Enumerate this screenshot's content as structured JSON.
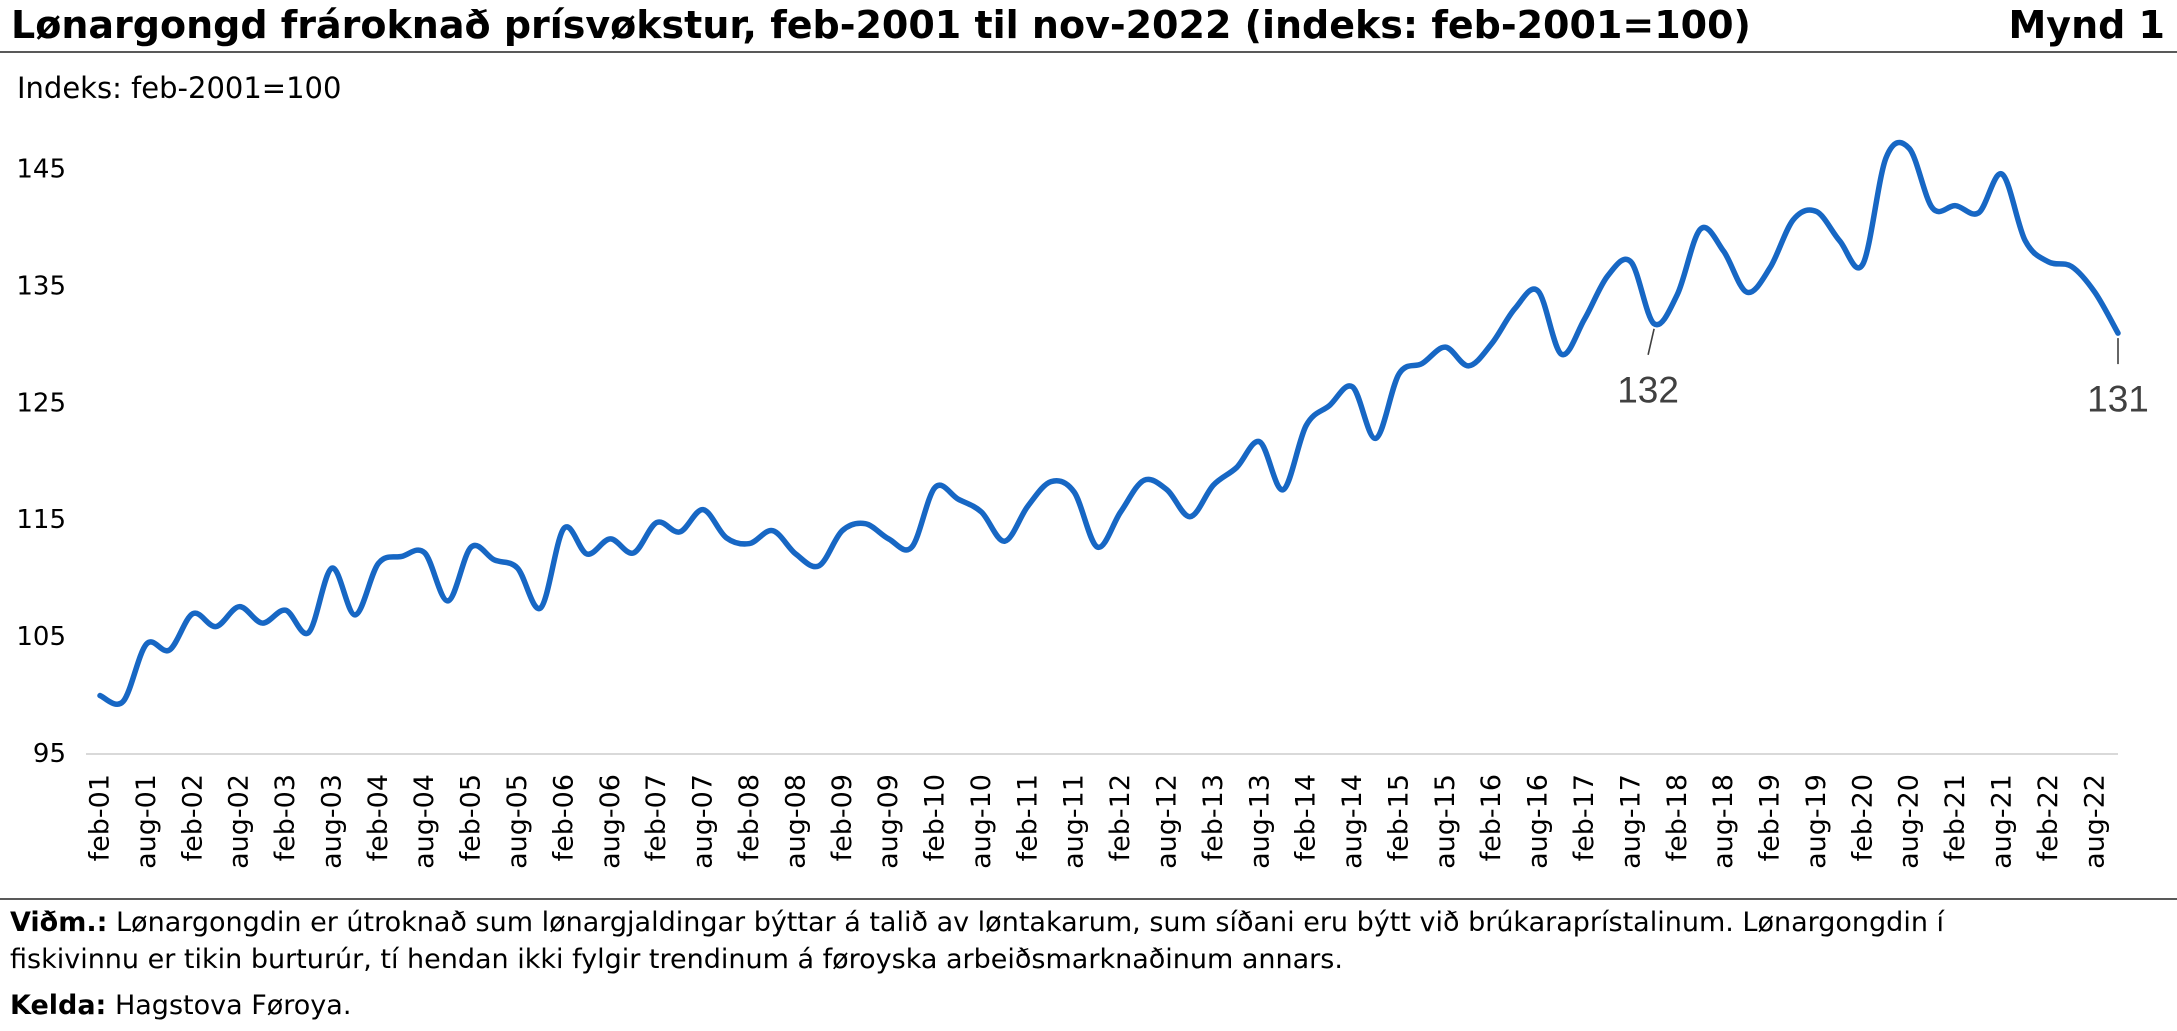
{
  "header": {
    "figure_label": "Mynd 1"
  },
  "chart_data": {
    "type": "line",
    "title": "Lønargongd frároknað prísvøkstur, feb-2001 til nov-2022 (indeks: feb-2001=100)",
    "ylabel": "Indeks: feb-2001=100",
    "xlabel": "",
    "ylim": [
      95,
      150
    ],
    "y_ticks": [
      95,
      105,
      115,
      125,
      135,
      145
    ],
    "grid": false,
    "legend": "none",
    "x_ticks": [
      "feb-01",
      "aug-01",
      "feb-02",
      "aug-02",
      "feb-03",
      "aug-03",
      "feb-04",
      "aug-04",
      "feb-05",
      "aug-05",
      "feb-06",
      "aug-06",
      "feb-07",
      "aug-07",
      "feb-08",
      "aug-08",
      "feb-09",
      "aug-09",
      "feb-10",
      "aug-10",
      "feb-11",
      "aug-11",
      "feb-12",
      "aug-12",
      "feb-13",
      "aug-13",
      "feb-14",
      "aug-14",
      "feb-15",
      "aug-15",
      "feb-16",
      "aug-16",
      "feb-17",
      "aug-17",
      "feb-18",
      "aug-18",
      "feb-19",
      "aug-19",
      "feb-20",
      "aug-20",
      "feb-21",
      "aug-21",
      "feb-22",
      "aug-22"
    ],
    "x": [
      "feb-01",
      "mai-01",
      "aug-01",
      "nov-01",
      "feb-02",
      "mai-02",
      "aug-02",
      "nov-02",
      "feb-03",
      "mai-03",
      "aug-03",
      "nov-03",
      "feb-04",
      "mai-04",
      "aug-04",
      "nov-04",
      "feb-05",
      "mai-05",
      "aug-05",
      "nov-05",
      "feb-06",
      "mai-06",
      "aug-06",
      "nov-06",
      "feb-07",
      "mai-07",
      "aug-07",
      "nov-07",
      "feb-08",
      "mai-08",
      "aug-08",
      "nov-08",
      "feb-09",
      "mai-09",
      "aug-09",
      "nov-09",
      "feb-10",
      "mai-10",
      "aug-10",
      "nov-10",
      "feb-11",
      "mai-11",
      "aug-11",
      "nov-11",
      "feb-12",
      "mai-12",
      "aug-12",
      "nov-12",
      "feb-13",
      "mai-13",
      "aug-13",
      "nov-13",
      "feb-14",
      "mai-14",
      "aug-14",
      "nov-14",
      "feb-15",
      "mai-15",
      "aug-15",
      "nov-15",
      "feb-16",
      "mai-16",
      "aug-16",
      "nov-16",
      "feb-17",
      "mai-17",
      "aug-17",
      "nov-17",
      "feb-18",
      "mai-18",
      "aug-18",
      "nov-18",
      "feb-19",
      "mai-19",
      "aug-19",
      "nov-19",
      "feb-20",
      "mai-20",
      "aug-20",
      "nov-20",
      "feb-21",
      "mai-21",
      "aug-21",
      "nov-21",
      "feb-22",
      "mai-22",
      "aug-22",
      "nov-22"
    ],
    "series": [
      {
        "color": "#1767c4",
        "smooth": true,
        "values": [
          100.0,
          99.5,
          104.4,
          103.9,
          107.0,
          105.9,
          107.6,
          106.2,
          107.3,
          105.4,
          110.9,
          106.9,
          111.3,
          111.9,
          112.2,
          108.1,
          112.7,
          111.6,
          110.9,
          107.5,
          114.3,
          112.1,
          113.4,
          112.2,
          114.8,
          114.0,
          115.9,
          113.5,
          113.0,
          114.1,
          112.1,
          111.1,
          114.1,
          114.7,
          113.4,
          112.7,
          117.8,
          116.8,
          115.7,
          113.2,
          116.2,
          118.3,
          117.4,
          112.7,
          115.7,
          118.4,
          117.6,
          115.3,
          118.0,
          119.5,
          121.7,
          117.6,
          123.1,
          124.8,
          126.4,
          122.0,
          127.5,
          128.4,
          129.8,
          128.2,
          130.1,
          133.1,
          134.6,
          129.2,
          132.2,
          135.9,
          137.1,
          131.8,
          134.3,
          139.9,
          138.0,
          134.5,
          136.6,
          140.7,
          141.4,
          138.9,
          136.9,
          146.0,
          146.8,
          141.7,
          141.9,
          141.3,
          144.6,
          138.9,
          137.1,
          136.7,
          134.5,
          131.0
        ]
      }
    ],
    "annotations": [
      {
        "x": "nov-17",
        "label": "132"
      },
      {
        "x": "nov-22",
        "label": "131"
      }
    ]
  },
  "footer": {
    "note_label": "Viðm.:",
    "note_text": "Lønargongdin er útroknað sum lønargjaldingar býttar á talið av løntakarum, sum síðani eru býtt við brúkaraprístalinum. Lønargongdin í fiskivinnu er tikin burturúr, tí hendan ikki fylgir trendinum á føroyska arbeiðsmarknaðinum annars.",
    "source_label": "Kelda:",
    "source_text": "Hagstova Føroya."
  }
}
